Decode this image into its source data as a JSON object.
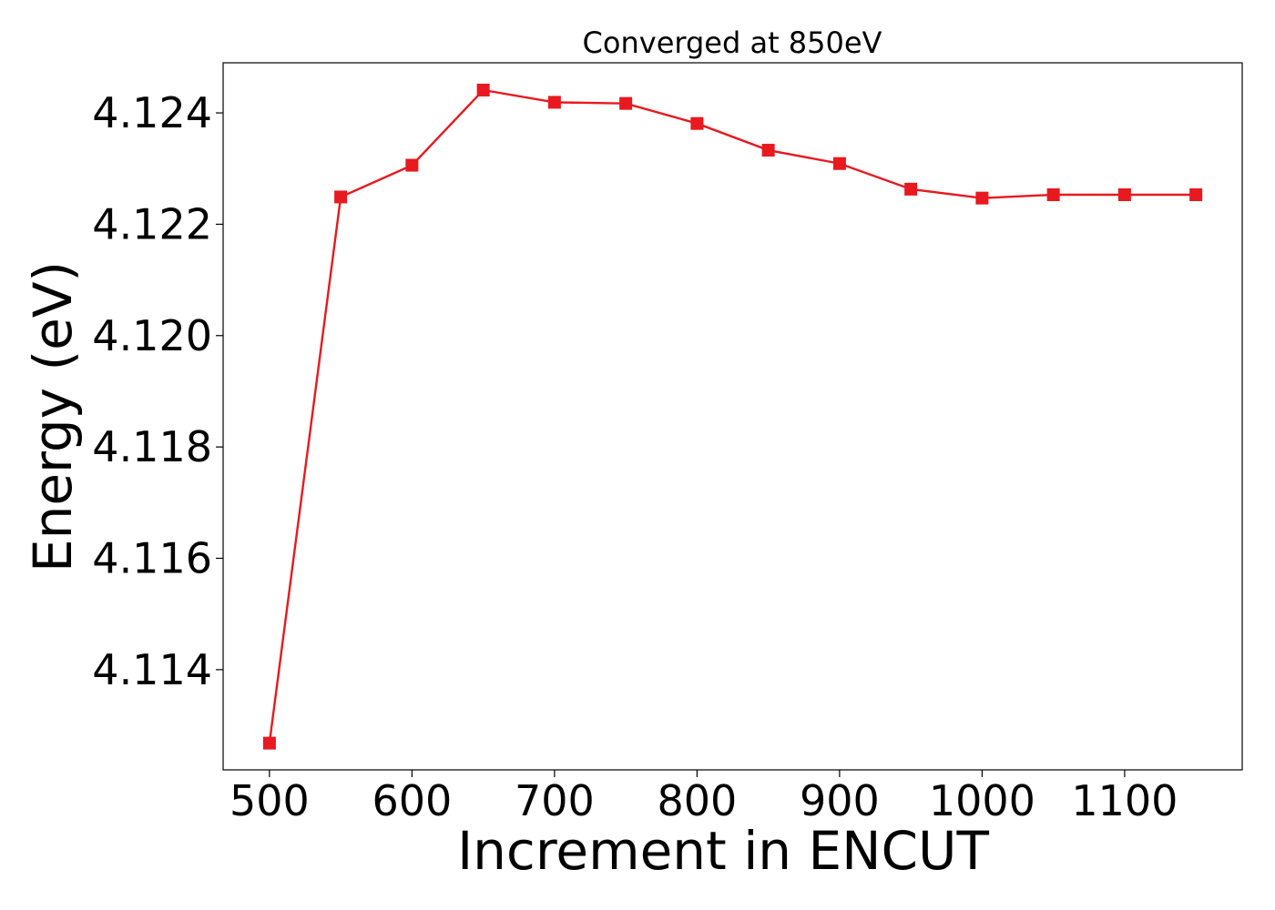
{
  "chart_data": {
    "type": "line",
    "title": "Converged at 850eV",
    "xlabel": "Increment in ENCUT",
    "ylabel": "Energy (eV)",
    "xlim": [
      467.5,
      1182.5
    ],
    "ylim": [
      4.1122,
      4.1249
    ],
    "xticks": [
      500,
      600,
      700,
      800,
      900,
      1000,
      1100
    ],
    "yticks": [
      4.114,
      4.116,
      4.118,
      4.12,
      4.122,
      4.124
    ],
    "ytick_labels": [
      "4.114",
      "4.116",
      "4.118",
      "4.120",
      "4.122",
      "4.124"
    ],
    "grid": false,
    "marker": "square",
    "series": [
      {
        "color": "#e8191f",
        "x": [
          500,
          550,
          600,
          650,
          700,
          750,
          800,
          850,
          900,
          950,
          1000,
          1050,
          1100,
          1150
        ],
        "y": [
          4.11268,
          4.12249,
          4.12306,
          4.12441,
          4.12419,
          4.12417,
          4.12381,
          4.12333,
          4.12309,
          4.12263,
          4.12247,
          4.12253,
          4.12253,
          4.12253
        ]
      }
    ]
  }
}
